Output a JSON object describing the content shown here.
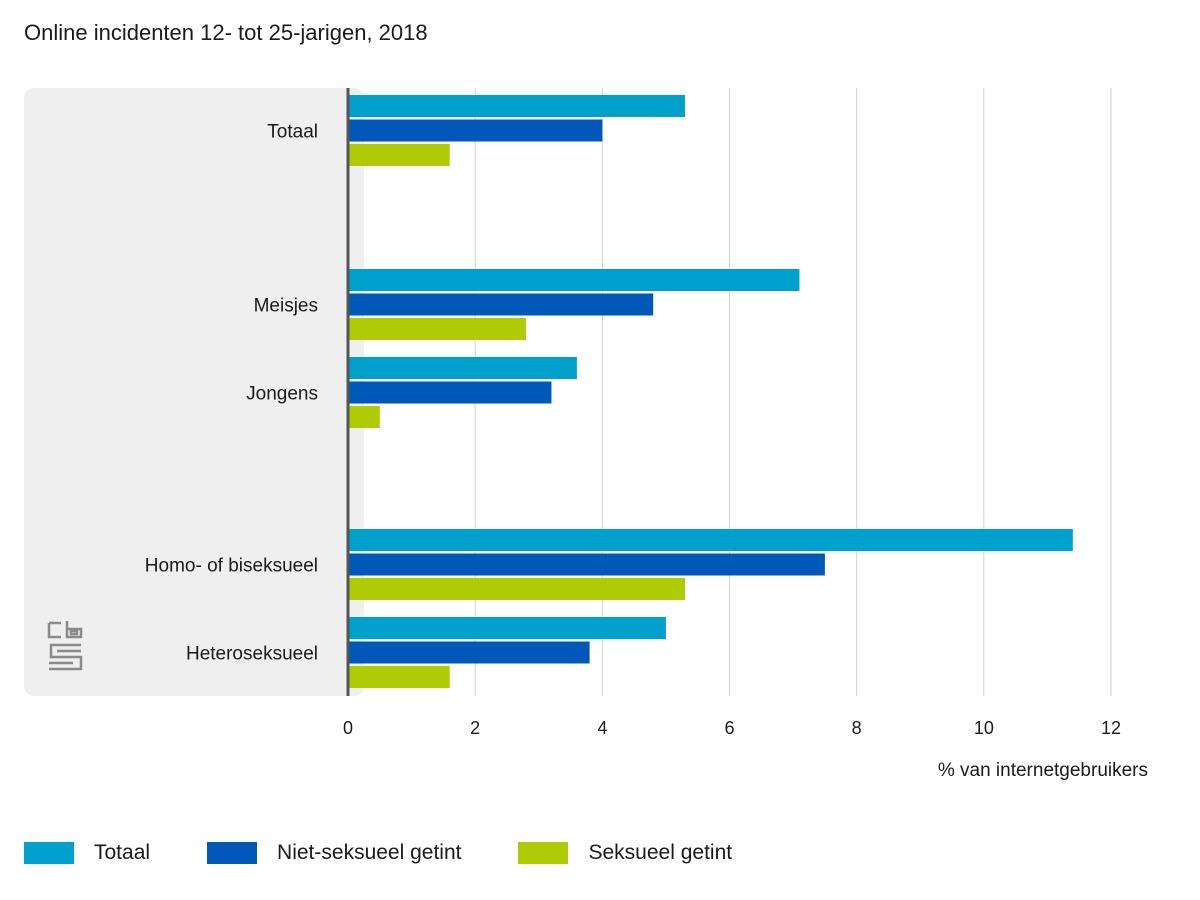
{
  "chart_data": {
    "type": "bar",
    "orientation": "horizontal",
    "title": "Online incidenten 12- tot 25-jarigen, 2018",
    "xlabel": "% van internetgebruikers",
    "ylabel": "",
    "xlim": [
      0,
      12
    ],
    "xticks": [
      0,
      2,
      4,
      6,
      8,
      10,
      12
    ],
    "grid": true,
    "legend_position": "bottom",
    "categories": [
      "Totaal",
      "Meisjes",
      "Jongens",
      "Homo- of biseksueel",
      "Heteroseksueel"
    ],
    "series": [
      {
        "name": "Totaal",
        "color": "#00a1cd",
        "values": [
          5.3,
          7.1,
          3.6,
          11.4,
          5.0
        ]
      },
      {
        "name": "Niet-seksueel getint",
        "color": "#0058b8",
        "values": [
          4.0,
          4.8,
          3.2,
          7.5,
          3.8
        ]
      },
      {
        "name": "Seksueel getint",
        "color": "#afcb05",
        "values": [
          1.6,
          2.8,
          0.5,
          5.3,
          1.6
        ]
      }
    ]
  },
  "logo": {
    "icon": "cbs-logo-icon"
  }
}
